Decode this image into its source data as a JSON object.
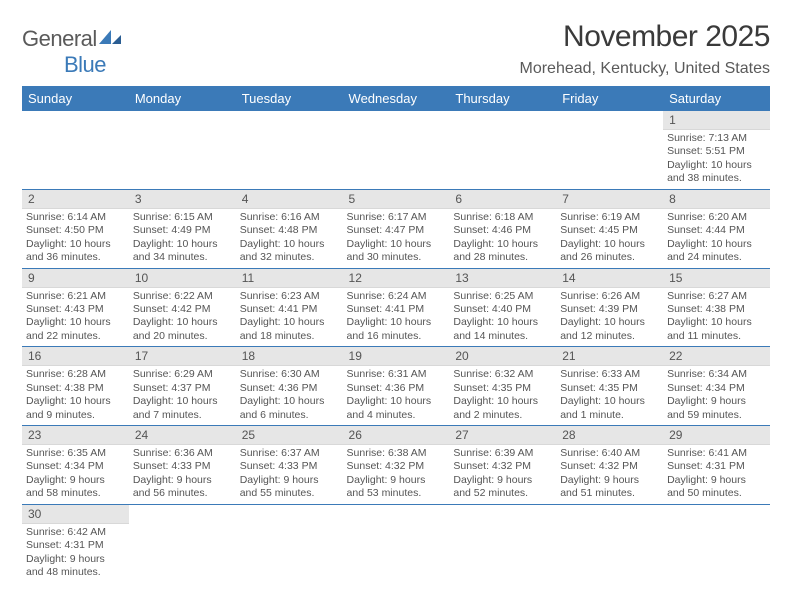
{
  "logo": {
    "word1": "General",
    "word2": "Blue"
  },
  "title": "November 2025",
  "location": "Morehead, Kentucky, United States",
  "colors": {
    "header_bg": "#3b7ab8",
    "header_text": "#ffffff",
    "daynum_bg": "#e6e6e6",
    "text": "#555555",
    "logo_gray": "#5a5a5a",
    "logo_blue": "#3b7ab8"
  },
  "weekdays": [
    "Sunday",
    "Monday",
    "Tuesday",
    "Wednesday",
    "Thursday",
    "Friday",
    "Saturday"
  ],
  "weeks": [
    [
      null,
      null,
      null,
      null,
      null,
      null,
      {
        "n": "1",
        "sr": "7:13 AM",
        "ss": "5:51 PM",
        "dl": "10 hours and 38 minutes."
      }
    ],
    [
      {
        "n": "2",
        "sr": "6:14 AM",
        "ss": "4:50 PM",
        "dl": "10 hours and 36 minutes."
      },
      {
        "n": "3",
        "sr": "6:15 AM",
        "ss": "4:49 PM",
        "dl": "10 hours and 34 minutes."
      },
      {
        "n": "4",
        "sr": "6:16 AM",
        "ss": "4:48 PM",
        "dl": "10 hours and 32 minutes."
      },
      {
        "n": "5",
        "sr": "6:17 AM",
        "ss": "4:47 PM",
        "dl": "10 hours and 30 minutes."
      },
      {
        "n": "6",
        "sr": "6:18 AM",
        "ss": "4:46 PM",
        "dl": "10 hours and 28 minutes."
      },
      {
        "n": "7",
        "sr": "6:19 AM",
        "ss": "4:45 PM",
        "dl": "10 hours and 26 minutes."
      },
      {
        "n": "8",
        "sr": "6:20 AM",
        "ss": "4:44 PM",
        "dl": "10 hours and 24 minutes."
      }
    ],
    [
      {
        "n": "9",
        "sr": "6:21 AM",
        "ss": "4:43 PM",
        "dl": "10 hours and 22 minutes."
      },
      {
        "n": "10",
        "sr": "6:22 AM",
        "ss": "4:42 PM",
        "dl": "10 hours and 20 minutes."
      },
      {
        "n": "11",
        "sr": "6:23 AM",
        "ss": "4:41 PM",
        "dl": "10 hours and 18 minutes."
      },
      {
        "n": "12",
        "sr": "6:24 AM",
        "ss": "4:41 PM",
        "dl": "10 hours and 16 minutes."
      },
      {
        "n": "13",
        "sr": "6:25 AM",
        "ss": "4:40 PM",
        "dl": "10 hours and 14 minutes."
      },
      {
        "n": "14",
        "sr": "6:26 AM",
        "ss": "4:39 PM",
        "dl": "10 hours and 12 minutes."
      },
      {
        "n": "15",
        "sr": "6:27 AM",
        "ss": "4:38 PM",
        "dl": "10 hours and 11 minutes."
      }
    ],
    [
      {
        "n": "16",
        "sr": "6:28 AM",
        "ss": "4:38 PM",
        "dl": "10 hours and 9 minutes."
      },
      {
        "n": "17",
        "sr": "6:29 AM",
        "ss": "4:37 PM",
        "dl": "10 hours and 7 minutes."
      },
      {
        "n": "18",
        "sr": "6:30 AM",
        "ss": "4:36 PM",
        "dl": "10 hours and 6 minutes."
      },
      {
        "n": "19",
        "sr": "6:31 AM",
        "ss": "4:36 PM",
        "dl": "10 hours and 4 minutes."
      },
      {
        "n": "20",
        "sr": "6:32 AM",
        "ss": "4:35 PM",
        "dl": "10 hours and 2 minutes."
      },
      {
        "n": "21",
        "sr": "6:33 AM",
        "ss": "4:35 PM",
        "dl": "10 hours and 1 minute."
      },
      {
        "n": "22",
        "sr": "6:34 AM",
        "ss": "4:34 PM",
        "dl": "9 hours and 59 minutes."
      }
    ],
    [
      {
        "n": "23",
        "sr": "6:35 AM",
        "ss": "4:34 PM",
        "dl": "9 hours and 58 minutes."
      },
      {
        "n": "24",
        "sr": "6:36 AM",
        "ss": "4:33 PM",
        "dl": "9 hours and 56 minutes."
      },
      {
        "n": "25",
        "sr": "6:37 AM",
        "ss": "4:33 PM",
        "dl": "9 hours and 55 minutes."
      },
      {
        "n": "26",
        "sr": "6:38 AM",
        "ss": "4:32 PM",
        "dl": "9 hours and 53 minutes."
      },
      {
        "n": "27",
        "sr": "6:39 AM",
        "ss": "4:32 PM",
        "dl": "9 hours and 52 minutes."
      },
      {
        "n": "28",
        "sr": "6:40 AM",
        "ss": "4:32 PM",
        "dl": "9 hours and 51 minutes."
      },
      {
        "n": "29",
        "sr": "6:41 AM",
        "ss": "4:31 PM",
        "dl": "9 hours and 50 minutes."
      }
    ],
    [
      {
        "n": "30",
        "sr": "6:42 AM",
        "ss": "4:31 PM",
        "dl": "9 hours and 48 minutes."
      },
      null,
      null,
      null,
      null,
      null,
      null
    ]
  ],
  "labels": {
    "sunrise": "Sunrise:",
    "sunset": "Sunset:",
    "daylight": "Daylight:"
  }
}
